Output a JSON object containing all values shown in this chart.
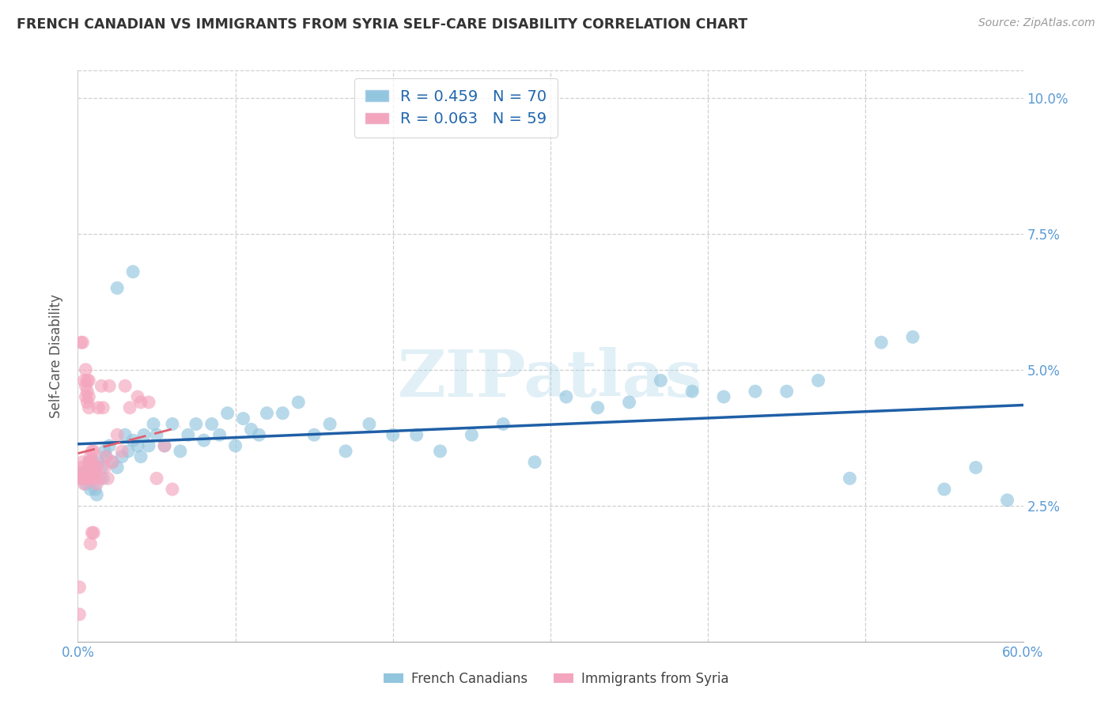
{
  "title": "FRENCH CANADIAN VS IMMIGRANTS FROM SYRIA SELF-CARE DISABILITY CORRELATION CHART",
  "source": "Source: ZipAtlas.com",
  "ylabel": "Self-Care Disability",
  "xlim": [
    0.0,
    0.6
  ],
  "ylim": [
    0.0,
    0.105
  ],
  "yticks": [
    0.0,
    0.025,
    0.05,
    0.075,
    0.1
  ],
  "ytick_labels": [
    "",
    "2.5%",
    "5.0%",
    "7.5%",
    "10.0%"
  ],
  "xticks": [
    0.0,
    0.1,
    0.2,
    0.3,
    0.4,
    0.5,
    0.6
  ],
  "xtick_labels": [
    "0.0%",
    "",
    "",
    "",
    "",
    "",
    "60.0%"
  ],
  "blue_R": 0.459,
  "blue_N": 70,
  "pink_R": 0.063,
  "pink_N": 59,
  "blue_color": "#92c5de",
  "pink_color": "#f4a5be",
  "blue_line_color": "#1f5fa6",
  "pink_line_color": "#e06070",
  "watermark": "ZIPatlas",
  "legend_label_blue": "French Canadians",
  "legend_label_pink": "Immigrants from Syria",
  "blue_x": [
    0.002,
    0.003,
    0.005,
    0.007,
    0.008,
    0.009,
    0.01,
    0.011,
    0.012,
    0.013,
    0.015,
    0.016,
    0.017,
    0.018,
    0.02,
    0.022,
    0.025,
    0.028,
    0.03,
    0.032,
    0.035,
    0.038,
    0.04,
    0.042,
    0.045,
    0.048,
    0.05,
    0.055,
    0.06,
    0.065,
    0.07,
    0.075,
    0.08,
    0.085,
    0.09,
    0.095,
    0.1,
    0.105,
    0.11,
    0.115,
    0.12,
    0.13,
    0.14,
    0.15,
    0.16,
    0.17,
    0.185,
    0.2,
    0.215,
    0.23,
    0.25,
    0.27,
    0.29,
    0.31,
    0.33,
    0.35,
    0.37,
    0.39,
    0.41,
    0.43,
    0.45,
    0.47,
    0.49,
    0.51,
    0.53,
    0.55,
    0.57,
    0.59,
    0.025,
    0.035
  ],
  "blue_y": [
    0.031,
    0.03,
    0.029,
    0.033,
    0.028,
    0.032,
    0.031,
    0.028,
    0.027,
    0.033,
    0.032,
    0.03,
    0.035,
    0.034,
    0.036,
    0.033,
    0.032,
    0.034,
    0.038,
    0.035,
    0.037,
    0.036,
    0.034,
    0.038,
    0.036,
    0.04,
    0.038,
    0.036,
    0.04,
    0.035,
    0.038,
    0.04,
    0.037,
    0.04,
    0.038,
    0.042,
    0.036,
    0.041,
    0.039,
    0.038,
    0.042,
    0.042,
    0.044,
    0.038,
    0.04,
    0.035,
    0.04,
    0.038,
    0.038,
    0.035,
    0.038,
    0.04,
    0.033,
    0.045,
    0.043,
    0.044,
    0.048,
    0.046,
    0.045,
    0.046,
    0.046,
    0.048,
    0.03,
    0.055,
    0.056,
    0.028,
    0.032,
    0.026,
    0.065,
    0.068
  ],
  "pink_x": [
    0.001,
    0.002,
    0.002,
    0.003,
    0.003,
    0.003,
    0.004,
    0.004,
    0.005,
    0.005,
    0.005,
    0.006,
    0.006,
    0.006,
    0.007,
    0.007,
    0.007,
    0.008,
    0.008,
    0.008,
    0.009,
    0.009,
    0.009,
    0.01,
    0.01,
    0.01,
    0.011,
    0.011,
    0.012,
    0.012,
    0.013,
    0.014,
    0.015,
    0.016,
    0.017,
    0.018,
    0.019,
    0.02,
    0.022,
    0.025,
    0.028,
    0.03,
    0.033,
    0.038,
    0.04,
    0.045,
    0.05,
    0.055,
    0.06,
    0.002,
    0.003,
    0.004,
    0.005,
    0.006,
    0.007,
    0.008,
    0.009,
    0.01,
    0.001
  ],
  "pink_y": [
    0.01,
    0.032,
    0.03,
    0.033,
    0.031,
    0.03,
    0.029,
    0.031,
    0.045,
    0.047,
    0.03,
    0.044,
    0.046,
    0.03,
    0.043,
    0.045,
    0.033,
    0.032,
    0.034,
    0.03,
    0.033,
    0.032,
    0.035,
    0.033,
    0.031,
    0.035,
    0.03,
    0.031,
    0.029,
    0.032,
    0.043,
    0.03,
    0.047,
    0.043,
    0.032,
    0.034,
    0.03,
    0.047,
    0.033,
    0.038,
    0.035,
    0.047,
    0.043,
    0.045,
    0.044,
    0.044,
    0.03,
    0.036,
    0.028,
    0.055,
    0.055,
    0.048,
    0.05,
    0.048,
    0.048,
    0.018,
    0.02,
    0.02,
    0.005
  ]
}
